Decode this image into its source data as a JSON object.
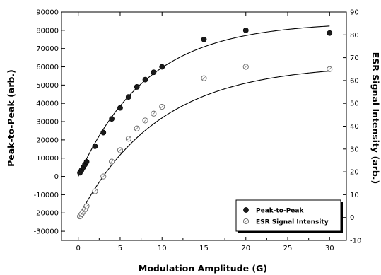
{
  "chart_data": {
    "type": "scatter",
    "xlabel": "Modulation Amplitude (G)",
    "ylabel_left": "Peak-to-Peak (arb.)",
    "ylabel_right": "ESR Signal Intensity (arb.)",
    "xlim": [
      -2,
      32
    ],
    "xticks": [
      0,
      5,
      10,
      15,
      20,
      25,
      30
    ],
    "ylim_left": [
      -35000,
      90000
    ],
    "yticks_left": [
      -30000,
      -20000,
      -10000,
      0,
      10000,
      20000,
      30000,
      40000,
      50000,
      60000,
      70000,
      80000,
      90000
    ],
    "ylim_right": [
      -10,
      90
    ],
    "yticks_right": [
      -10,
      0,
      10,
      20,
      30,
      40,
      50,
      60,
      70,
      80,
      90
    ],
    "grid": false,
    "legend_position": "bottom-right",
    "series": [
      {
        "name": "Peak-to-Peak",
        "axis": "left",
        "marker": "filled-circle",
        "color": "#1a1a1a",
        "x": [
          0.2,
          0.4,
          0.6,
          0.8,
          1.0,
          2.0,
          3.0,
          4.0,
          5.0,
          6.0,
          7.0,
          8.0,
          9.0,
          10.0,
          15.0,
          20.0,
          30.0
        ],
        "y": [
          2000,
          3500,
          5000,
          6500,
          8000,
          16500,
          24000,
          31500,
          37500,
          43500,
          49000,
          53000,
          57000,
          60000,
          75000,
          80000,
          78500
        ]
      },
      {
        "name": "ESR Signal Intensity",
        "axis": "right",
        "marker": "open-circle",
        "color": "#707070",
        "x": [
          0.2,
          0.4,
          0.6,
          0.8,
          1.0,
          2.0,
          3.0,
          4.0,
          5.0,
          6.0,
          7.0,
          8.0,
          9.0,
          10.0,
          15.0,
          20.0,
          30.0
        ],
        "y": [
          0.5,
          1.5,
          2.5,
          3.5,
          5.0,
          11.5,
          18.0,
          24.5,
          29.5,
          34.5,
          39.0,
          42.5,
          45.5,
          48.5,
          61.0,
          66.0,
          65.0
        ]
      }
    ],
    "fits": [
      {
        "series": "Peak-to-Peak",
        "axis": "left",
        "model": "exponential-saturation",
        "y0": 0,
        "A": 84500,
        "tau": 8.2
      },
      {
        "series": "ESR Signal Intensity",
        "axis": "right",
        "model": "exponential-saturation",
        "y0": 0,
        "A": 67,
        "tau": 9.5
      }
    ]
  }
}
